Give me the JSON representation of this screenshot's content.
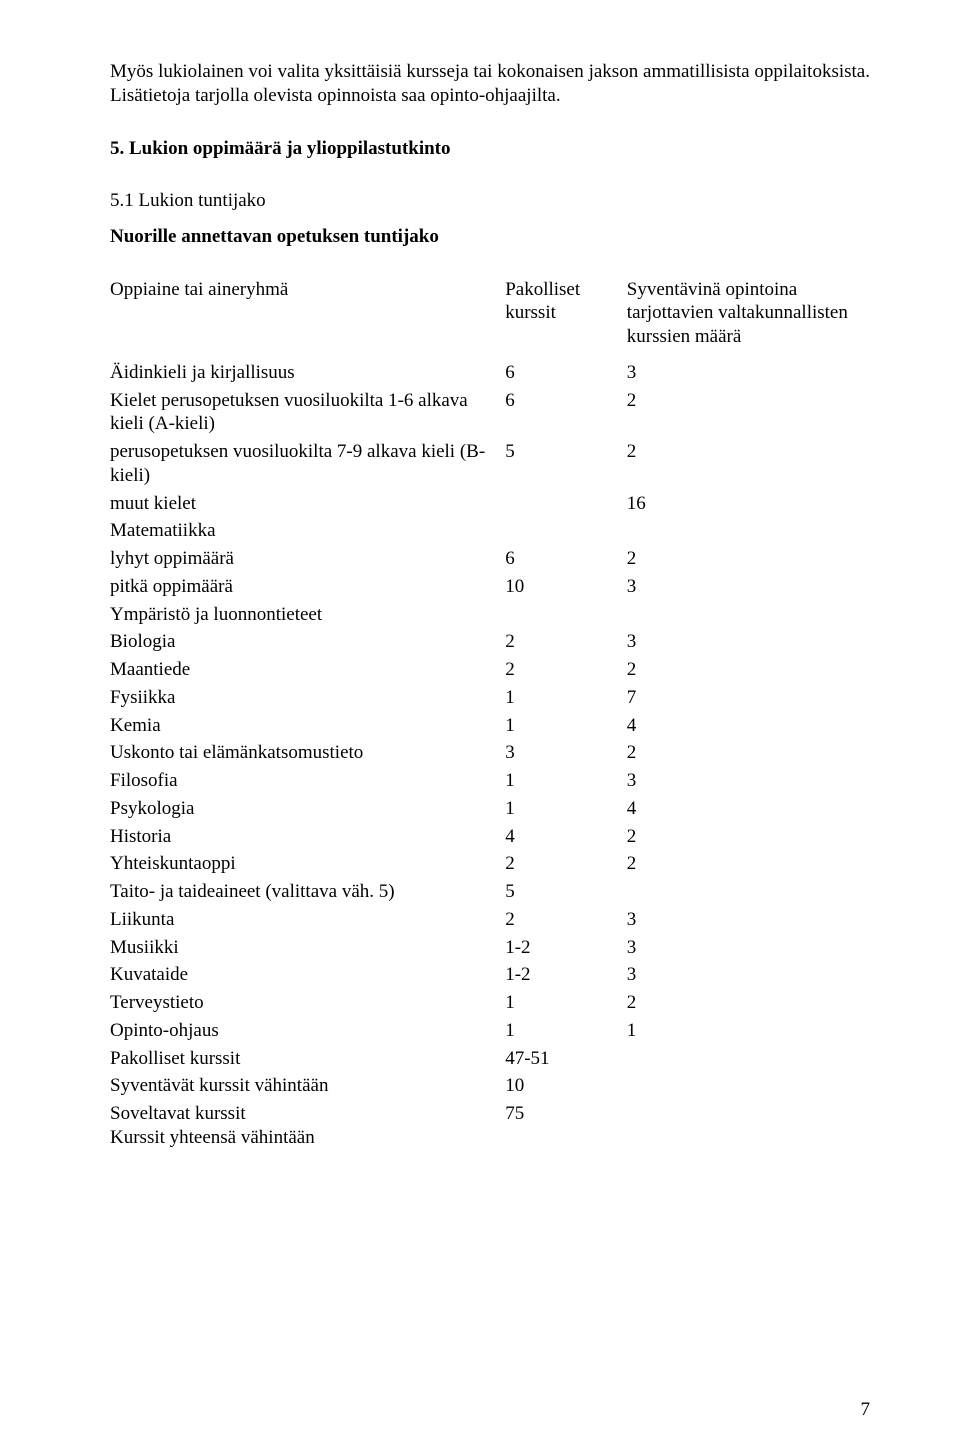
{
  "intro_para": "Myös lukiolainen voi valita yksittäisiä kursseja tai kokonaisen jakson ammatillisista oppilaitoksista. Lisätietoja tarjolla olevista opinnoista saa opinto-ohjaajilta.",
  "heading_5": "5. Lukion oppimäärä ja ylioppilastutkinto",
  "heading_5_1": "5.1 Lukion tuntijako",
  "subheading": "Nuorille annettavan opetuksen tuntijako",
  "header": {
    "col_label": "Oppiaine tai aineryhmä",
    "col_a": "Pakolliset kurssit",
    "col_b": "Syventävinä opintoina tarjottavien valtakunnallisten kurssien määrä"
  },
  "rows": [
    {
      "label": "Äidinkieli ja kirjallisuus",
      "a": "6",
      "b": "3"
    },
    {
      "label": "Kielet perusopetuksen vuosiluokilta 1-6 alkava kieli (A-kieli)",
      "a": "6",
      "b": "2"
    },
    {
      "label": "perusopetuksen vuosiluokilta 7-9 alkava kieli (B-kieli)",
      "a": "5",
      "b": "2"
    },
    {
      "label": "muut kielet",
      "a": "",
      "b": "16"
    },
    {
      "label": "Matematiikka",
      "a": "",
      "b": ""
    },
    {
      "label": "lyhyt oppimäärä",
      "a": "6",
      "b": "2"
    },
    {
      "label": "pitkä oppimäärä",
      "a": "10",
      "b": "3"
    },
    {
      "label": "Ympäristö ja luonnontieteet",
      "a": "",
      "b": ""
    },
    {
      "label": "Biologia",
      "a": "2",
      "b": "3"
    },
    {
      "label": "Maantiede",
      "a": "2",
      "b": "2"
    },
    {
      "label": "Fysiikka",
      "a": "1",
      "b": "7"
    },
    {
      "label": "Kemia",
      "a": "1",
      "b": "4"
    },
    {
      "label": "Uskonto tai elämänkatsomustieto",
      "a": "3",
      "b": "2"
    },
    {
      "label": "Filosofia",
      "a": "1",
      "b": "3"
    },
    {
      "label": "Psykologia",
      "a": "1",
      "b": "4"
    },
    {
      "label": "Historia",
      "a": "4",
      "b": "2"
    },
    {
      "label": "Yhteiskuntaoppi",
      "a": "2",
      "b": "2"
    },
    {
      "label": "Taito- ja taideaineet (valittava väh. 5)",
      "a": "5",
      "b": ""
    },
    {
      "label": "Liikunta",
      "a": "2",
      "b": "3"
    },
    {
      "label": "Musiikki",
      "a": "1-2",
      "b": "3"
    },
    {
      "label": "Kuvataide",
      "a": "1-2",
      "b": "3"
    },
    {
      "label": "Terveystieto",
      "a": "1",
      "b": "2"
    },
    {
      "label": "Opinto-ohjaus",
      "a": "1",
      "b": "1"
    },
    {
      "label": "Pakolliset kurssit",
      "a": "47-51",
      "b": ""
    },
    {
      "label": "Syventävät kurssit vähintään",
      "a": "10",
      "b": ""
    },
    {
      "label": "Soveltavat kurssit\nKurssit yhteensä vähintään",
      "a": "75",
      "b": ""
    }
  ],
  "page_number": "7"
}
